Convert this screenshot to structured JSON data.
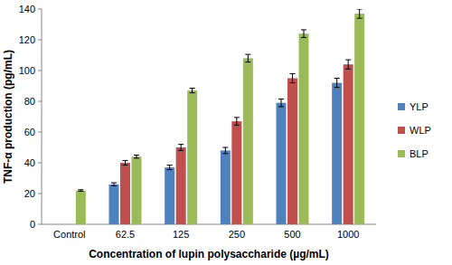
{
  "chart_data": {
    "type": "bar",
    "x_label": "Concentration of lupin polysaccharide (µg/mL)",
    "y_label": "TNF-α production (pg/mL)",
    "categories": [
      "Control",
      "62.5",
      "125",
      "250",
      "500",
      "1000"
    ],
    "series": [
      {
        "name": "YLP",
        "color": "#4f81bd",
        "values": [
          null,
          26,
          37,
          48,
          79,
          92
        ],
        "errors": [
          null,
          1,
          1.5,
          2,
          2.5,
          3
        ]
      },
      {
        "name": "WLP",
        "color": "#c0504d",
        "values": [
          null,
          40,
          50,
          67,
          95,
          104
        ],
        "errors": [
          null,
          1.5,
          2,
          2.5,
          3,
          3
        ]
      },
      {
        "name": "BLP",
        "color": "#9bbb59",
        "values": [
          22,
          44,
          87,
          108,
          124,
          137
        ],
        "errors": [
          0.5,
          1,
          1.5,
          2.5,
          2.5,
          3
        ]
      }
    ],
    "ylim": [
      0,
      140
    ],
    "yticks": [
      0,
      20,
      40,
      60,
      80,
      100,
      120,
      140
    ],
    "grid": false,
    "legend": "right"
  }
}
